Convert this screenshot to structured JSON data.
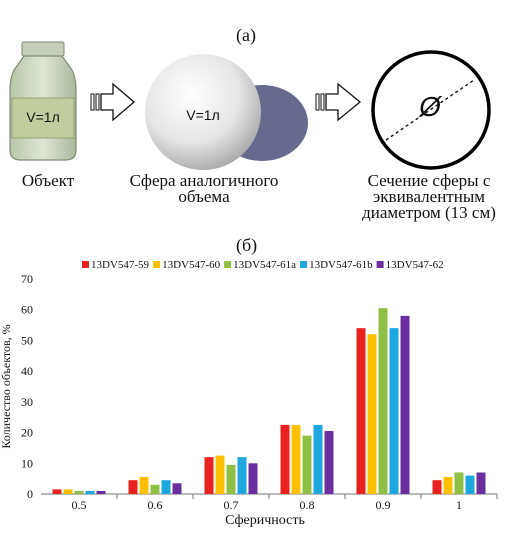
{
  "panel_a": {
    "label": "(а)",
    "object_caption": "Объект",
    "jar_volume": "V=1л",
    "sphere_caption_line1": "Сфера аналогичного",
    "sphere_caption_line2": "объема",
    "sphere_volume": "V=1л",
    "section_caption_line1": "Сечение сферы с",
    "section_caption_line2": "эквивалентным",
    "section_caption_line3": "диаметром (13 см)",
    "diameter_symbol": "Ø"
  },
  "panel_b": {
    "label": "(б)"
  },
  "colors": {
    "arrow_fill": "#ffffff",
    "arrow_stroke": "#111111",
    "circle_stroke": "#000000"
  },
  "chart_data": {
    "type": "bar",
    "xlabel": "Сферичность",
    "ylabel": "Количество объектов, %",
    "ylim": [
      0,
      70
    ],
    "yticks": [
      0,
      10,
      20,
      30,
      40,
      50,
      60,
      70
    ],
    "grid": false,
    "legend_position": "top",
    "categories": [
      "0.5",
      "0.6",
      "0.7",
      "0.8",
      "0.9",
      "1"
    ],
    "series": [
      {
        "name": "13DV547-59",
        "color": "#e8231f",
        "values": [
          1.5,
          4.5,
          12,
          22.5,
          54,
          4.5
        ]
      },
      {
        "name": "13DV547-60",
        "color": "#ffc000",
        "values": [
          1.5,
          5.5,
          12.5,
          22.5,
          52,
          5.5
        ]
      },
      {
        "name": "13DV547-61a",
        "color": "#8ec045",
        "values": [
          1,
          3,
          9.5,
          19,
          60.5,
          7
        ]
      },
      {
        "name": "13DV547-61b",
        "color": "#1fa7e0",
        "values": [
          1,
          4.5,
          12,
          22.5,
          54,
          6
        ]
      },
      {
        "name": "13DV547-62",
        "color": "#6b2fa0",
        "values": [
          1,
          3.5,
          10,
          20.5,
          58,
          7
        ]
      }
    ]
  }
}
